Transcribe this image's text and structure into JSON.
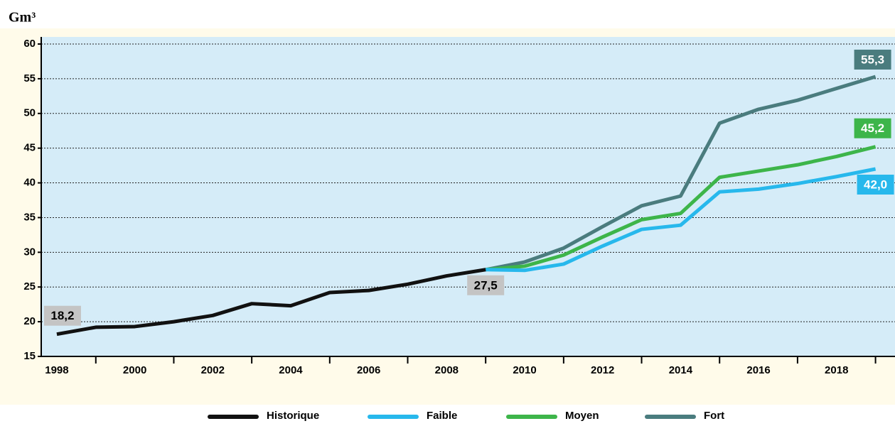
{
  "chart_data": {
    "type": "line",
    "y_label": "Gm³",
    "x": [
      1998,
      1999,
      2000,
      2001,
      2002,
      2003,
      2004,
      2005,
      2006,
      2007,
      2008,
      2009,
      2010,
      2011,
      2012,
      2013,
      2014,
      2015,
      2016,
      2017,
      2018,
      2019
    ],
    "series": [
      {
        "name": "Historique",
        "color": "#111111",
        "values": [
          18.2,
          19.2,
          19.3,
          20.0,
          20.9,
          22.6,
          22.3,
          24.2,
          24.5,
          25.4,
          26.6,
          27.5,
          null,
          null,
          null,
          null,
          null,
          null,
          null,
          null,
          null,
          null
        ],
        "value_labels": [
          "18,2",
          null,
          null,
          null,
          null,
          null,
          null,
          null,
          null,
          null,
          null,
          "27,5",
          null,
          null,
          null,
          null,
          null,
          null,
          null,
          null,
          null,
          null
        ],
        "label_color": "#c4c4c4",
        "label_text_color": "#000000"
      },
      {
        "name": "Faible",
        "color": "#27b8ec",
        "values": [
          null,
          null,
          null,
          null,
          null,
          null,
          null,
          null,
          null,
          null,
          null,
          27.5,
          27.4,
          28.3,
          30.9,
          33.3,
          33.9,
          38.7,
          39.1,
          39.9,
          40.9,
          42.0
        ],
        "value_labels": [
          null,
          null,
          null,
          null,
          null,
          null,
          null,
          null,
          null,
          null,
          null,
          null,
          null,
          null,
          null,
          null,
          null,
          null,
          null,
          null,
          null,
          "42,0"
        ],
        "label_color": "#27b8ec",
        "label_text_color": "#ffffff"
      },
      {
        "name": "Moyen",
        "color": "#3db54a",
        "values": [
          null,
          null,
          null,
          null,
          null,
          null,
          null,
          null,
          null,
          null,
          null,
          27.5,
          28.0,
          29.6,
          32.2,
          34.7,
          35.6,
          40.8,
          41.7,
          42.6,
          43.8,
          45.2
        ],
        "value_labels": [
          null,
          null,
          null,
          null,
          null,
          null,
          null,
          null,
          null,
          null,
          null,
          null,
          null,
          null,
          null,
          null,
          null,
          null,
          null,
          null,
          null,
          "45,2"
        ],
        "label_color": "#3db54a",
        "label_text_color": "#ffffff"
      },
      {
        "name": "Fort",
        "color": "#4a7c7e",
        "values": [
          null,
          null,
          null,
          null,
          null,
          null,
          null,
          null,
          null,
          null,
          null,
          27.5,
          28.6,
          30.6,
          33.7,
          36.7,
          38.1,
          48.6,
          50.6,
          51.9,
          53.6,
          55.3
        ],
        "value_labels": [
          null,
          null,
          null,
          null,
          null,
          null,
          null,
          null,
          null,
          null,
          null,
          null,
          null,
          null,
          null,
          null,
          null,
          null,
          null,
          null,
          null,
          "55,3"
        ],
        "label_color": "#4a7c7e",
        "label_text_color": "#ffffff"
      }
    ],
    "xlim": [
      1997.6,
      2019.5
    ],
    "xticks": [
      1998,
      2000,
      2002,
      2004,
      2006,
      2008,
      2010,
      2012,
      2014,
      2016,
      2018
    ],
    "ylim": [
      15,
      60
    ],
    "yticks": [
      15,
      20,
      25,
      30,
      35,
      40,
      45,
      50,
      55,
      60
    ],
    "grid": true,
    "legend": "bottom"
  }
}
